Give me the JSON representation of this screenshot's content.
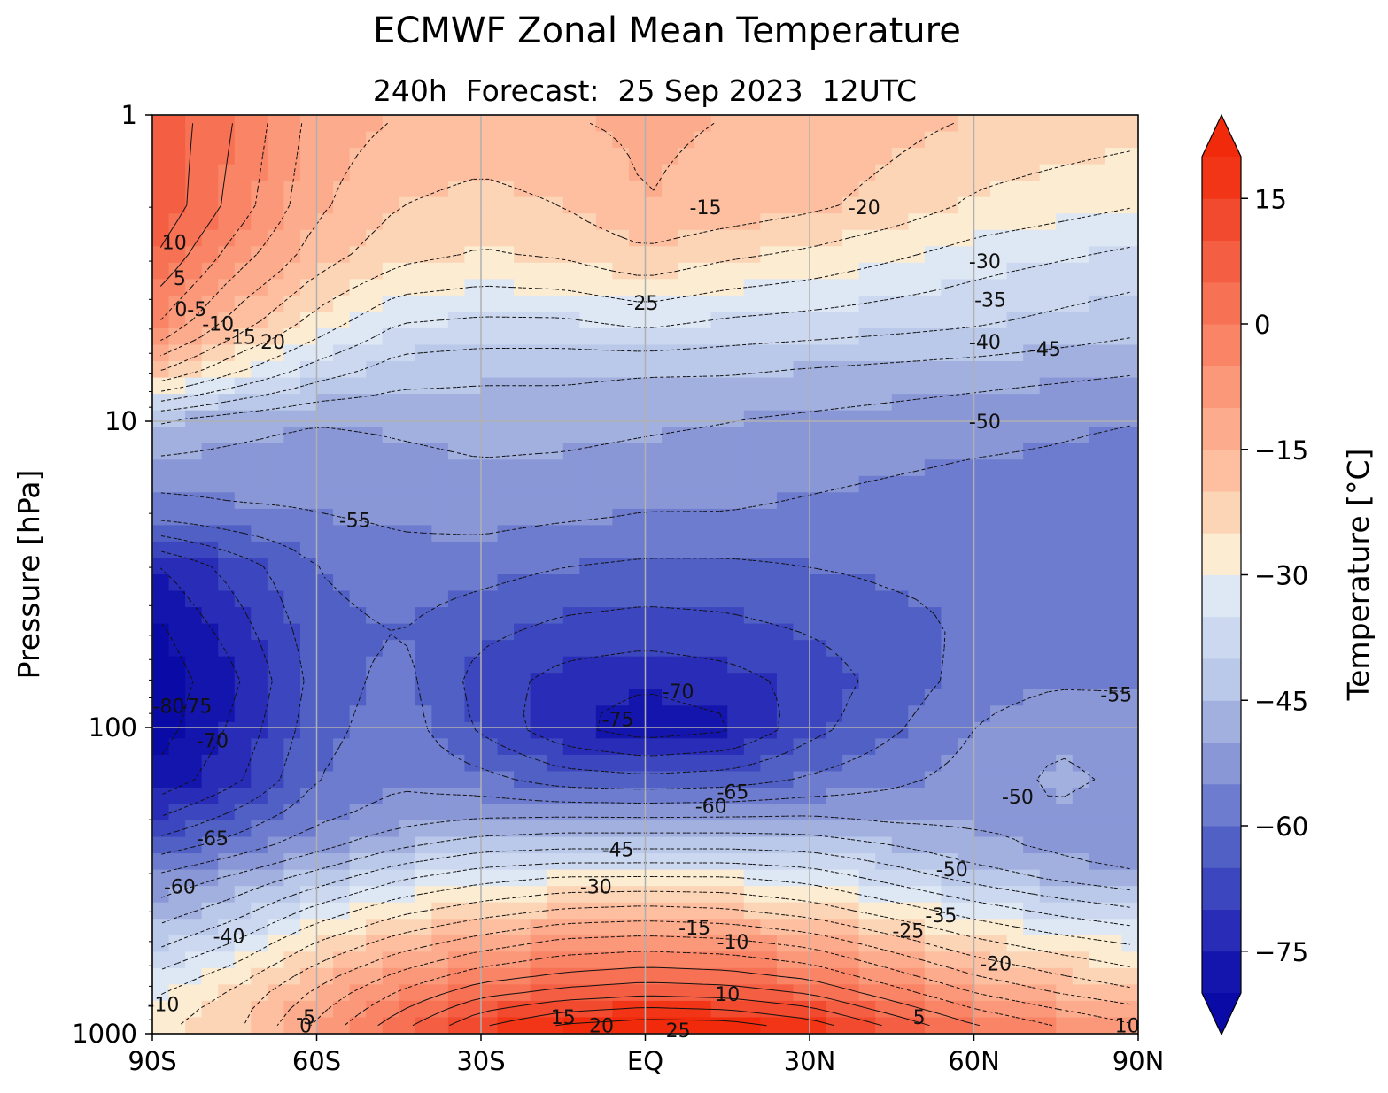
{
  "chart_data": {
    "type": "heatmap",
    "title": "ECMWF Zonal Mean Temperature",
    "subtitle": "240h  Forecast:  25 Sep 2023  12UTC",
    "xlabel": "",
    "ylabel": "Pressure [hPa]",
    "colorbar_label": "Temperature [°C]",
    "x_ticks": [
      "90S",
      "60S",
      "30S",
      "EQ",
      "30N",
      "60N",
      "90N"
    ],
    "x_tick_values": [
      -90,
      -60,
      -30,
      0,
      30,
      60,
      90
    ],
    "y_ticks": [
      "1",
      "10",
      "100",
      "1000"
    ],
    "y_tick_values": [
      1,
      10,
      100,
      1000
    ],
    "y_scale": "log",
    "y_inverted": true,
    "xlim": [
      -90,
      90
    ],
    "ylim": [
      1000,
      1
    ],
    "grid": true,
    "colorbar_ticks": [
      "15",
      "0",
      "−15",
      "−30",
      "−45",
      "−60",
      "−75"
    ],
    "colorbar_tick_values": [
      15,
      0,
      -15,
      -30,
      -45,
      -60,
      -75
    ],
    "clim": [
      -80,
      20
    ],
    "contour_interval": 5,
    "colormap_stops": [
      {
        "v": -80,
        "c": "#0a0aa6"
      },
      {
        "v": -72,
        "c": "#2a2eb8"
      },
      {
        "v": -62,
        "c": "#5363c6"
      },
      {
        "v": -52,
        "c": "#8d9ad8"
      },
      {
        "v": -42,
        "c": "#bccbea"
      },
      {
        "v": -32,
        "c": "#e0e8f4"
      },
      {
        "v": -28,
        "c": "#fbeed5"
      },
      {
        "v": -20,
        "c": "#fdc9aa"
      },
      {
        "v": -10,
        "c": "#fca282"
      },
      {
        "v": 0,
        "c": "#f87a5c"
      },
      {
        "v": 10,
        "c": "#f3553a"
      },
      {
        "v": 20,
        "c": "#f02a0a"
      }
    ],
    "profiles": {
      "lat": [
        -90,
        -75,
        -60,
        -45,
        -30,
        -15,
        0,
        15,
        30,
        45,
        60,
        75,
        90
      ],
      "p": [
        1,
        2,
        3,
        5,
        7,
        10,
        20,
        30,
        50,
        70,
        100,
        150,
        200,
        250,
        300,
        400,
        500,
        700,
        850,
        1000
      ],
      "t": [
        [
          10,
          0,
          -12,
          -15,
          -16,
          -15,
          -14,
          -15,
          -16,
          -18,
          -20,
          -21,
          -22
        ],
        [
          10,
          -2,
          -14,
          -20,
          -22,
          -20,
          -15,
          -17,
          -19,
          -22,
          -26,
          -28,
          -30
        ],
        [
          5,
          -8,
          -18,
          -24,
          -26,
          -25,
          -22,
          -25,
          -27,
          -30,
          -33,
          -35,
          -37
        ],
        [
          -5,
          -18,
          -28,
          -36,
          -37,
          -37,
          -35,
          -37,
          -38,
          -39,
          -40,
          -42,
          -44
        ],
        [
          -20,
          -30,
          -38,
          -43,
          -44,
          -44,
          -45,
          -45,
          -46,
          -47,
          -48,
          -49,
          -50
        ],
        [
          -45,
          -48,
          -50,
          -49,
          -48,
          -48,
          -49,
          -50,
          -51,
          -52,
          -53,
          -54,
          -55
        ],
        [
          -58,
          -56,
          -55,
          -54,
          -53,
          -54,
          -55,
          -55,
          -56,
          -57,
          -58,
          -58,
          -59
        ],
        [
          -76,
          -68,
          -60,
          -57,
          -58,
          -60,
          -61,
          -61,
          -60,
          -59,
          -59,
          -58,
          -58
        ],
        [
          -82,
          -73,
          -62,
          -60,
          -64,
          -67,
          -68,
          -67,
          -65,
          -62,
          -59,
          -57,
          -56
        ],
        [
          -84,
          -76,
          -63,
          -58,
          -67,
          -72,
          -74,
          -72,
          -68,
          -63,
          -58,
          -56,
          -56
        ],
        [
          -83,
          -74,
          -62,
          -57,
          -66,
          -74,
          -78,
          -76,
          -67,
          -61,
          -55,
          -51,
          -52
        ],
        [
          -79,
          -71,
          -60,
          -56,
          -58,
          -62,
          -63,
          -62,
          -59,
          -56,
          -53,
          -49,
          -51
        ],
        [
          -70,
          -63,
          -56,
          -52,
          -50,
          -49,
          -49,
          -49,
          -49,
          -51,
          -51,
          -51,
          -53
        ],
        [
          -62,
          -57,
          -51,
          -45,
          -41,
          -40,
          -40,
          -40,
          -41,
          -44,
          -48,
          -51,
          -53
        ],
        [
          -55,
          -50,
          -44,
          -37,
          -33,
          -31,
          -31,
          -31,
          -33,
          -38,
          -43,
          -47,
          -50
        ],
        [
          -48,
          -42,
          -33,
          -26,
          -22,
          -19,
          -18,
          -19,
          -22,
          -27,
          -32,
          -36,
          -39
        ],
        [
          -42,
          -35,
          -25,
          -18,
          -13,
          -9,
          -8,
          -9,
          -12,
          -18,
          -24,
          -28,
          -31
        ],
        [
          -32,
          -25,
          -15,
          -6,
          1,
          4,
          6,
          5,
          2,
          -5,
          -12,
          -17,
          -21
        ],
        [
          -28,
          -22,
          -11,
          0,
          10,
          15,
          17,
          16,
          12,
          4,
          -4,
          -9,
          -13
        ],
        [
          -26,
          -21,
          -8,
          5,
          17,
          24,
          26,
          26,
          21,
          12,
          3,
          -3,
          -8
        ]
      ]
    },
    "contour_labels": [
      {
        "text": "10",
        "lat": -86,
        "p": 2.6
      },
      {
        "text": "5",
        "lat": -85,
        "p": 3.4
      },
      {
        "text": "0-5",
        "lat": -83,
        "p": 4.3
      },
      {
        "text": "-10",
        "lat": -78,
        "p": 4.8
      },
      {
        "text": "-15",
        "lat": -74,
        "p": 5.3
      },
      {
        "text": "20",
        "lat": -68,
        "p": 5.5
      },
      {
        "text": "-15",
        "lat": 11,
        "p": 2.0
      },
      {
        "text": "-20",
        "lat": 40,
        "p": 2.0
      },
      {
        "text": "-30",
        "lat": 62,
        "p": 3.0
      },
      {
        "text": "-25",
        "lat": -0.5,
        "p": 4.1
      },
      {
        "text": "-35",
        "lat": 63,
        "p": 4.0
      },
      {
        "text": "-40",
        "lat": 62,
        "p": 5.5
      },
      {
        "text": "-45",
        "lat": 73,
        "p": 5.8
      },
      {
        "text": "-50",
        "lat": 62,
        "p": 10
      },
      {
        "text": "-55",
        "lat": -53,
        "p": 21
      },
      {
        "text": "-55",
        "lat": 86,
        "p": 78
      },
      {
        "text": "-70",
        "lat": 6,
        "p": 76
      },
      {
        "text": "-75",
        "lat": -5,
        "p": 94
      },
      {
        "text": "-80",
        "lat": -87,
        "p": 85
      },
      {
        "text": "-75",
        "lat": -82,
        "p": 85
      },
      {
        "text": "-70",
        "lat": -79,
        "p": 110
      },
      {
        "text": "-65",
        "lat": 16,
        "p": 162
      },
      {
        "text": "-60",
        "lat": 12,
        "p": 180
      },
      {
        "text": "-50",
        "lat": 68,
        "p": 168
      },
      {
        "text": "-65",
        "lat": -79,
        "p": 230
      },
      {
        "text": "-45",
        "lat": -5,
        "p": 250
      },
      {
        "text": "-50",
        "lat": 56,
        "p": 290
      },
      {
        "text": "-60",
        "lat": -85,
        "p": 330
      },
      {
        "text": "-30",
        "lat": -9,
        "p": 330
      },
      {
        "text": "-35",
        "lat": 54,
        "p": 410
      },
      {
        "text": "-25",
        "lat": 48,
        "p": 460
      },
      {
        "text": "-15",
        "lat": 9,
        "p": 450
      },
      {
        "text": "-40",
        "lat": -76,
        "p": 480
      },
      {
        "text": "-10",
        "lat": 16,
        "p": 500
      },
      {
        "text": "-20",
        "lat": 64,
        "p": 590
      },
      {
        "text": "-10",
        "lat": -88,
        "p": 800
      },
      {
        "text": "10",
        "lat": 15,
        "p": 740
      },
      {
        "text": "-5",
        "lat": -62,
        "p": 880
      },
      {
        "text": "0",
        "lat": -62,
        "p": 940
      },
      {
        "text": "5",
        "lat": 50,
        "p": 880
      },
      {
        "text": "15",
        "lat": -15,
        "p": 880
      },
      {
        "text": "20",
        "lat": -8,
        "p": 940
      },
      {
        "text": "25",
        "lat": 6,
        "p": 975
      },
      {
        "text": "10",
        "lat": 88,
        "p": 940
      }
    ]
  }
}
